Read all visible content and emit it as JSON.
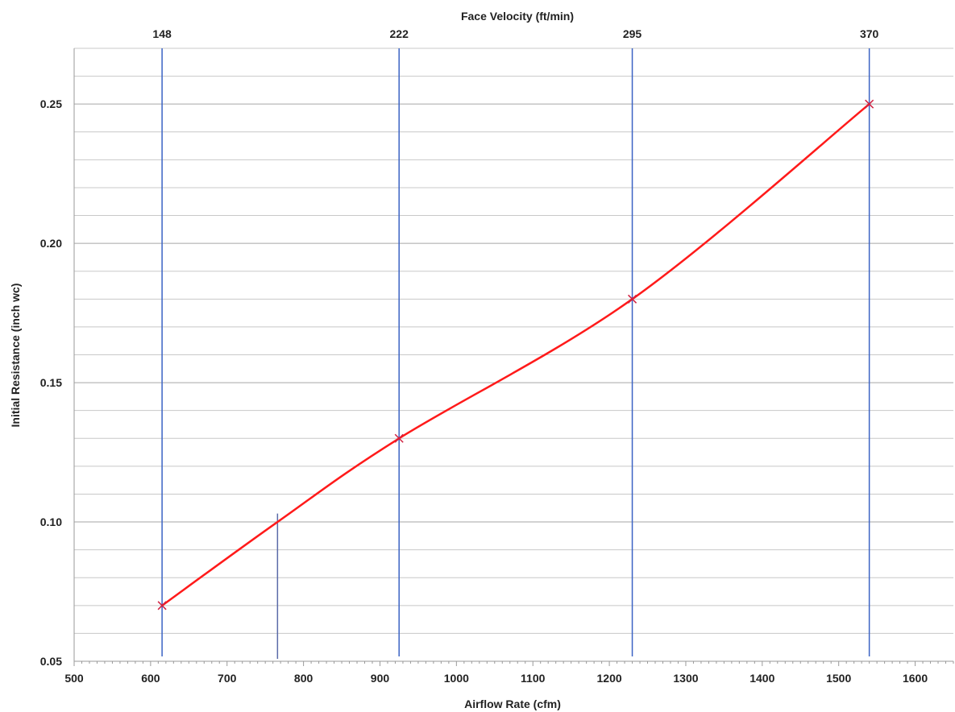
{
  "chart_data": {
    "type": "line",
    "title": "",
    "top_axis_title": "Face Velocity (ft/min)",
    "xlabel": "Airflow Rate (cfm)",
    "ylabel": "Initial Resistance (inch wc)",
    "xlim": [
      500,
      1650
    ],
    "ylim": [
      0.05,
      0.27
    ],
    "x_ticks": [
      {
        "value": 500,
        "label": "500"
      },
      {
        "value": 600,
        "label": "600"
      },
      {
        "value": 700,
        "label": "700"
      },
      {
        "value": 800,
        "label": "800"
      },
      {
        "value": 900,
        "label": "900"
      },
      {
        "value": 1000,
        "label": "1000"
      },
      {
        "value": 1100,
        "label": "1100"
      },
      {
        "value": 1200,
        "label": "1200"
      },
      {
        "value": 1300,
        "label": "1300"
      },
      {
        "value": 1400,
        "label": "1400"
      },
      {
        "value": 1500,
        "label": "1500"
      },
      {
        "value": 1600,
        "label": "1600"
      }
    ],
    "y_ticks": [
      {
        "value": 0.05,
        "label": "0.05"
      },
      {
        "value": 0.1,
        "label": "0.10"
      },
      {
        "value": 0.15,
        "label": "0.15"
      },
      {
        "value": 0.2,
        "label": "0.20"
      },
      {
        "value": 0.25,
        "label": "0.25"
      }
    ],
    "minor_grid_step": 0.01,
    "grid": true,
    "legend": "none",
    "top_ticks": [
      {
        "value": 615,
        "label": "148"
      },
      {
        "value": 925,
        "label": "222"
      },
      {
        "value": 1230,
        "label": "295"
      },
      {
        "value": 1540,
        "label": "370"
      }
    ],
    "marker_line": {
      "x": 766,
      "y_top": 0.103
    },
    "series": [
      {
        "color": "#ff1a1a",
        "x": [
          615,
          766,
          925,
          1230,
          1540
        ],
        "y": [
          0.07,
          0.1,
          0.13,
          0.18,
          0.25
        ]
      }
    ],
    "colors": {
      "series_line": "#ff1a1a",
      "series_marker": "#d02040",
      "velocity_lines": "#3b63c4",
      "marker_line": "#5a6aa8",
      "grid_major": "#a6a6a6",
      "grid_minor": "#c8c8c8",
      "axis": "#9a9a9a"
    }
  }
}
